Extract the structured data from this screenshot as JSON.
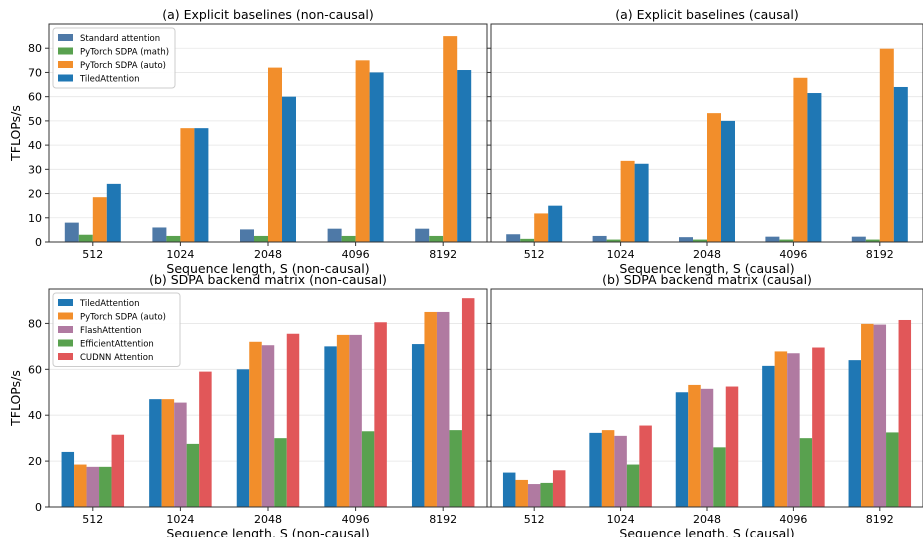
{
  "figure": {
    "ylabel": "TFLOPs/s",
    "colors": {
      "Standard attention": "#4e79a7",
      "PyTorch SDPA (math)": "#59a14f",
      "PyTorch SDPA (auto)": "#f28e2b",
      "TiledAttention": "#1f77b4",
      "FlashAttention": "#b07aa1",
      "EfficientAttention": "#59a14f",
      "CUDNN Attention": "#e15759"
    }
  },
  "chart_data": [
    {
      "type": "bar",
      "title": "(a) Explicit baselines (non-causal)",
      "xlabel": "Sequence length, S (non-causal)",
      "ylabel": "TFLOPs/s",
      "categories": [
        "512",
        "1024",
        "2048",
        "4096",
        "8192"
      ],
      "ylim": [
        0,
        90
      ],
      "yticks": [
        0,
        10,
        20,
        30,
        40,
        50,
        60,
        70,
        80
      ],
      "grid": true,
      "legend_position": "top-left",
      "series": [
        {
          "name": "Standard attention",
          "values": [
            8,
            6,
            5.2,
            5.5,
            5.5
          ]
        },
        {
          "name": "PyTorch SDPA (math)",
          "values": [
            3,
            2.5,
            2.5,
            2.5,
            2.5
          ]
        },
        {
          "name": "PyTorch SDPA (auto)",
          "values": [
            18.5,
            47,
            72,
            75,
            85
          ]
        },
        {
          "name": "TiledAttention",
          "values": [
            24,
            47,
            60,
            70,
            71
          ]
        }
      ]
    },
    {
      "type": "bar",
      "title": "(a) Explicit baselines (causal)",
      "xlabel": "Sequence length, S (causal)",
      "categories": [
        "512",
        "1024",
        "2048",
        "4096",
        "8192"
      ],
      "ylim": [
        0,
        90
      ],
      "yticks": [
        0,
        10,
        20,
        30,
        40,
        50,
        60,
        70,
        80
      ],
      "grid": true,
      "series": [
        {
          "name": "Standard attention",
          "values": [
            3.2,
            2.5,
            2,
            2.2,
            2.2
          ]
        },
        {
          "name": "PyTorch SDPA (math)",
          "values": [
            1.3,
            1,
            1,
            1,
            1
          ]
        },
        {
          "name": "PyTorch SDPA (auto)",
          "values": [
            11.8,
            33.5,
            53.2,
            67.8,
            79.8
          ]
        },
        {
          "name": "TiledAttention",
          "values": [
            15,
            32.3,
            50,
            61.5,
            64
          ]
        }
      ]
    },
    {
      "type": "bar",
      "title": "(b) SDPA backend matrix (non-causal)",
      "xlabel": "Sequence length, S (non-causal)",
      "ylabel": "TFLOPs/s",
      "categories": [
        "512",
        "1024",
        "2048",
        "4096",
        "8192"
      ],
      "ylim": [
        0,
        95
      ],
      "yticks": [
        0,
        20,
        40,
        60,
        80
      ],
      "grid": true,
      "legend_position": "top-left",
      "series": [
        {
          "name": "TiledAttention",
          "values": [
            24,
            47,
            60,
            70,
            71
          ]
        },
        {
          "name": "PyTorch SDPA (auto)",
          "values": [
            18.5,
            47,
            72,
            75,
            85
          ]
        },
        {
          "name": "FlashAttention",
          "values": [
            17.5,
            45.5,
            70.5,
            75,
            85
          ]
        },
        {
          "name": "EfficientAttention",
          "values": [
            17.5,
            27.5,
            30,
            33,
            33.5
          ]
        },
        {
          "name": "CUDNN Attention",
          "values": [
            31.5,
            59,
            75.5,
            80.5,
            91
          ]
        }
      ]
    },
    {
      "type": "bar",
      "title": "(b) SDPA backend matrix (causal)",
      "xlabel": "Sequence length, S (causal)",
      "categories": [
        "512",
        "1024",
        "2048",
        "4096",
        "8192"
      ],
      "ylim": [
        0,
        95
      ],
      "yticks": [
        0,
        20,
        40,
        60,
        80
      ],
      "grid": true,
      "series": [
        {
          "name": "TiledAttention",
          "values": [
            15,
            32.3,
            50,
            61.5,
            64
          ]
        },
        {
          "name": "PyTorch SDPA (auto)",
          "values": [
            11.8,
            33.5,
            53.2,
            67.8,
            79.8
          ]
        },
        {
          "name": "FlashAttention",
          "values": [
            10,
            31,
            51.5,
            67,
            79.5
          ]
        },
        {
          "name": "EfficientAttention",
          "values": [
            10.5,
            18.5,
            26,
            30,
            32.5
          ]
        },
        {
          "name": "CUDNN Attention",
          "values": [
            16,
            35.5,
            52.5,
            69.5,
            81.5
          ]
        }
      ]
    }
  ]
}
